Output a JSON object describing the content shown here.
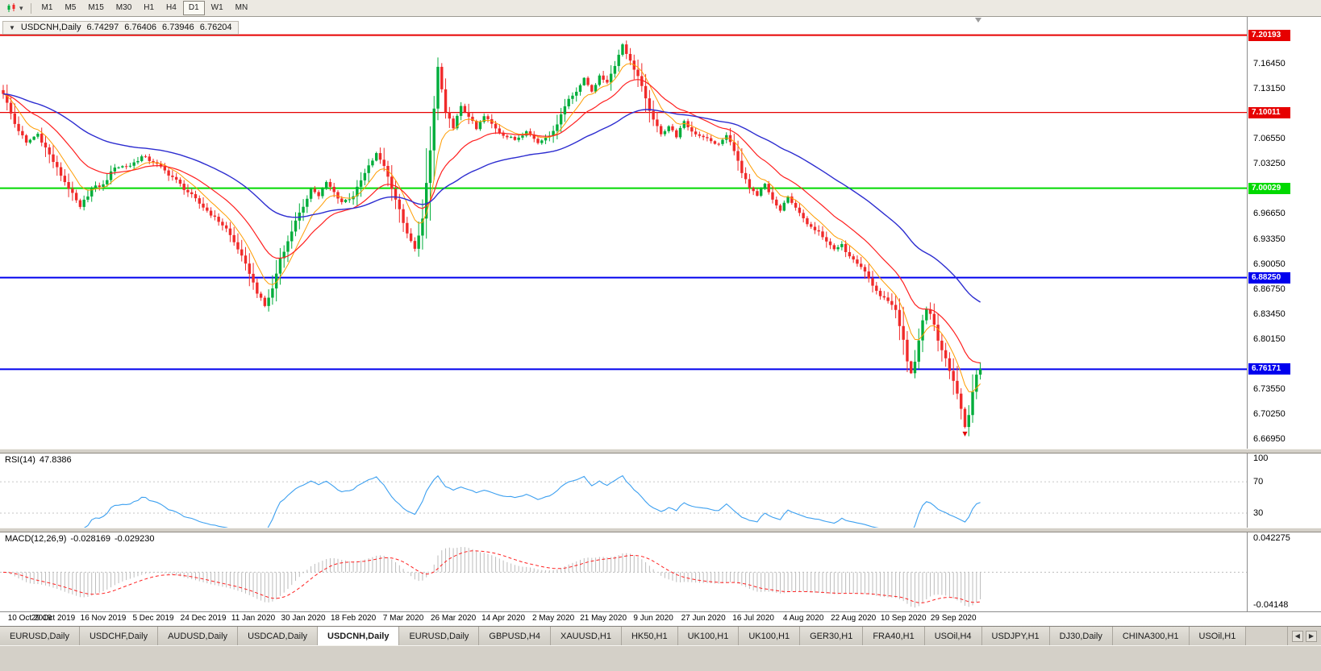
{
  "toolbar": {
    "timeframes": [
      "M1",
      "M5",
      "M15",
      "M30",
      "H1",
      "H4",
      "D1",
      "W1",
      "MN"
    ],
    "active": "D1"
  },
  "quote": {
    "collapse_icon": "▼",
    "symbol": "USDCNH,Daily",
    "open": "6.74297",
    "high": "6.76406",
    "low": "6.73946",
    "close": "6.76204"
  },
  "chart_data": {
    "type": "candlestick",
    "symbol": "USDCNH",
    "timeframe": "Daily",
    "candle_count": 255,
    "colors": {
      "up": "#00ad3b",
      "down": "#f02a2a"
    },
    "price_path": [
      [
        0,
        7.125
      ],
      [
        3,
        7.085
      ],
      [
        6,
        7.06
      ],
      [
        9,
        7.072
      ],
      [
        13,
        7.035
      ],
      [
        17,
        7.0
      ],
      [
        20,
        6.975
      ],
      [
        23,
        7.0
      ],
      [
        26,
        7.005
      ],
      [
        29,
        7.028
      ],
      [
        33,
        7.03
      ],
      [
        36,
        7.042
      ],
      [
        39,
        7.035
      ],
      [
        44,
        7.015
      ],
      [
        48,
        6.995
      ],
      [
        52,
        6.975
      ],
      [
        55,
        6.962
      ],
      [
        58,
        6.947
      ],
      [
        61,
        6.92
      ],
      [
        64,
        6.888
      ],
      [
        66,
        6.862
      ],
      [
        68,
        6.845
      ],
      [
        70,
        6.868
      ],
      [
        72,
        6.908
      ],
      [
        74,
        6.93
      ],
      [
        76,
        6.958
      ],
      [
        78,
        6.975
      ],
      [
        80,
        7.0
      ],
      [
        82,
        6.99
      ],
      [
        84,
        7.008
      ],
      [
        86,
        6.995
      ],
      [
        88,
        6.982
      ],
      [
        91,
        6.99
      ],
      [
        94,
        7.02
      ],
      [
        97,
        7.046
      ],
      [
        99,
        7.03
      ],
      [
        101,
        7.0
      ],
      [
        103,
        6.972
      ],
      [
        105,
        6.94
      ],
      [
        107,
        6.92
      ],
      [
        109,
        6.96
      ],
      [
        111,
        7.05
      ],
      [
        113,
        7.16
      ],
      [
        115,
        7.1
      ],
      [
        117,
        7.08
      ],
      [
        119,
        7.108
      ],
      [
        121,
        7.095
      ],
      [
        123,
        7.078
      ],
      [
        125,
        7.095
      ],
      [
        127,
        7.085
      ],
      [
        130,
        7.07
      ],
      [
        133,
        7.064
      ],
      [
        136,
        7.076
      ],
      [
        139,
        7.06
      ],
      [
        141,
        7.068
      ],
      [
        143,
        7.075
      ],
      [
        145,
        7.098
      ],
      [
        147,
        7.118
      ],
      [
        149,
        7.128
      ],
      [
        151,
        7.145
      ],
      [
        153,
        7.128
      ],
      [
        155,
        7.148
      ],
      [
        157,
        7.14
      ],
      [
        159,
        7.162
      ],
      [
        161,
        7.19
      ],
      [
        163,
        7.168
      ],
      [
        165,
        7.148
      ],
      [
        167,
        7.118
      ],
      [
        169,
        7.09
      ],
      [
        171,
        7.072
      ],
      [
        173,
        7.082
      ],
      [
        175,
        7.068
      ],
      [
        177,
        7.088
      ],
      [
        179,
        7.075
      ],
      [
        182,
        7.068
      ],
      [
        184,
        7.062
      ],
      [
        186,
        7.058
      ],
      [
        188,
        7.07
      ],
      [
        190,
        7.05
      ],
      [
        192,
        7.02
      ],
      [
        194,
        7.0
      ],
      [
        196,
        6.99
      ],
      [
        198,
        7.006
      ],
      [
        200,
        6.985
      ],
      [
        202,
        6.97
      ],
      [
        204,
        6.99
      ],
      [
        206,
        6.974
      ],
      [
        208,
        6.96
      ],
      [
        210,
        6.95
      ],
      [
        212,
        6.944
      ],
      [
        214,
        6.93
      ],
      [
        216,
        6.92
      ],
      [
        218,
        6.926
      ],
      [
        220,
        6.91
      ],
      [
        222,
        6.9
      ],
      [
        224,
        6.89
      ],
      [
        226,
        6.872
      ],
      [
        228,
        6.858
      ],
      [
        230,
        6.852
      ],
      [
        232,
        6.84
      ],
      [
        234,
        6.8
      ],
      [
        235,
        6.772
      ],
      [
        236,
        6.756
      ],
      [
        237,
        6.772
      ],
      [
        238,
        6.8
      ],
      [
        239,
        6.826
      ],
      [
        240,
        6.84
      ],
      [
        241,
        6.834
      ],
      [
        242,
        6.82
      ],
      [
        243,
        6.8
      ],
      [
        244,
        6.786
      ],
      [
        245,
        6.776
      ],
      [
        246,
        6.76
      ],
      [
        247,
        6.746
      ],
      [
        248,
        6.73
      ],
      [
        249,
        6.71
      ],
      [
        250,
        6.686
      ],
      [
        251,
        6.702
      ],
      [
        252,
        6.732
      ],
      [
        253,
        6.755
      ],
      [
        254,
        6.762
      ]
    ],
    "x_labels": [
      "10 Oct 2019",
      "29 Oct 2019",
      "16 Nov 2019",
      "5 Dec 2019",
      "24 Dec 2019",
      "11 Jan 2020",
      "30 Jan 2020",
      "18 Feb 2020",
      "7 Mar 2020",
      "26 Mar 2020",
      "14 Apr 2020",
      "2 May 2020",
      "21 May 2020",
      "9 Jun 2020",
      "27 Jun 2020",
      "16 Jul 2020",
      "4 Aug 2020",
      "22 Aug 2020",
      "10 Sep 2020",
      "29 Sep 2020"
    ],
    "label_every": 13,
    "y_axis": {
      "min": 6.657,
      "max": 7.226,
      "ticks": [
        {
          "label": "7.16450",
          "value": 7.1645
        },
        {
          "label": "7.13150",
          "value": 7.1315
        },
        {
          "label": "7.06550",
          "value": 7.0655
        },
        {
          "label": "7.03250",
          "value": 7.0325
        },
        {
          "label": "6.96650",
          "value": 6.9665
        },
        {
          "label": "6.93350",
          "value": 6.9335
        },
        {
          "label": "6.90050",
          "value": 6.9005
        },
        {
          "label": "6.86750",
          "value": 6.8675
        },
        {
          "label": "6.83450",
          "value": 6.8345
        },
        {
          "label": "6.80150",
          "value": 6.8015
        },
        {
          "label": "6.73550",
          "value": 6.7355
        },
        {
          "label": "6.70250",
          "value": 6.7025
        },
        {
          "label": "6.66950",
          "value": 6.6695
        }
      ]
    },
    "h_lines": [
      {
        "label": "7.20193",
        "value": 7.20193,
        "color": "#e60000",
        "width": 2
      },
      {
        "label": "7.10011",
        "value": 7.10011,
        "color": "#e60000",
        "width": 1.2
      },
      {
        "label": "7.00029",
        "value": 7.00029,
        "color": "#00d900",
        "width": 2
      },
      {
        "label": "6.88250",
        "value": 6.8825,
        "color": "#0000ee",
        "width": 2
      },
      {
        "label": "6.76171",
        "value": 6.76171,
        "color": "#0000ee",
        "width": 2
      }
    ],
    "moving_averages": [
      {
        "period": 8,
        "color": "#ff9c00",
        "width": 1
      },
      {
        "period": 20,
        "color": "#ff2020",
        "width": 1.2
      },
      {
        "period": 55,
        "color": "#2d2dd0",
        "width": 1.4
      }
    ]
  },
  "rsi": {
    "name": "RSI(14)",
    "value": "47.8386",
    "line_color": "#3da0f0",
    "axis_labels": [
      {
        "label": "100",
        "value": 100
      },
      {
        "label": "70",
        "value": 70
      },
      {
        "label": "30",
        "value": 30
      }
    ],
    "levels": [
      70,
      30
    ]
  },
  "macd": {
    "name": "MACD(12,26,9)",
    "value": "-0.028169",
    "signal_value": "-0.029230",
    "axis_max": "0.042275",
    "axis_min": "-0.04148",
    "hist_color": "#bcbcbc",
    "signal_color": "#ff2020"
  },
  "tabs": {
    "items": [
      "EURUSD,Daily",
      "USDCHF,Daily",
      "AUDUSD,Daily",
      "USDCAD,Daily",
      "USDCNH,Daily",
      "EURUSD,Daily",
      "GBPUSD,H4",
      "XAUUSD,H1",
      "HK50,H1",
      "UK100,H1",
      "UK100,H1",
      "GER30,H1",
      "FRA40,H1",
      "USOil,H4",
      "USDJPY,H1",
      "DJ30,Daily",
      "CHINA300,H1",
      "USOil,H1"
    ],
    "active_index": 4,
    "scroll_left": "◀",
    "scroll_right": "▶"
  },
  "markers": {
    "shift_marker": true,
    "sell_arrow_index": 250
  }
}
